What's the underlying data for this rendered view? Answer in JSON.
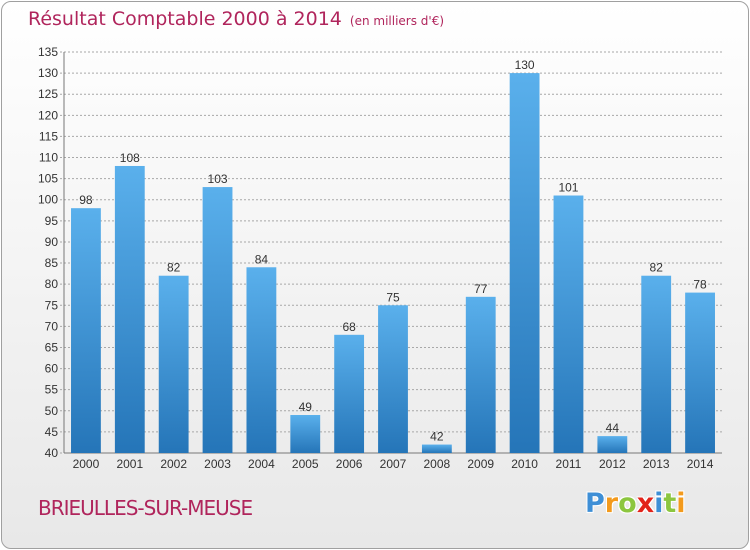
{
  "title": {
    "main": "Résultat Comptable 2000 à 2014",
    "unit": "(en milliers d'€)"
  },
  "town": "BRIEULLES-SUR-MEUSE",
  "logo": {
    "letters": [
      "P",
      "r",
      "o",
      "x",
      "i",
      "t",
      "i"
    ],
    "colors": [
      "#3e8fd6",
      "#f39a1c",
      "#8cc63f",
      "#e2231a",
      "#3e8fd6",
      "#8cc63f",
      "#f39a1c"
    ]
  },
  "colors": {
    "accent": "#b0255c",
    "bar_light": "#5ab0ec",
    "bar_dark": "#2575b8",
    "grid": "#a8a8a8"
  },
  "chart_data": {
    "type": "bar",
    "title": "Résultat Comptable 2000 à 2014",
    "subtitle": "(en milliers d'€)",
    "categories": [
      "2000",
      "2001",
      "2002",
      "2003",
      "2004",
      "2005",
      "2006",
      "2007",
      "2008",
      "2009",
      "2010",
      "2011",
      "2012",
      "2013",
      "2014"
    ],
    "values": [
      98,
      108,
      82,
      103,
      84,
      49,
      68,
      75,
      42,
      77,
      130,
      101,
      44,
      82,
      78
    ],
    "ylim": [
      40,
      135
    ],
    "yticks": [
      40,
      45,
      50,
      55,
      60,
      65,
      70,
      75,
      80,
      85,
      90,
      95,
      100,
      105,
      110,
      115,
      120,
      125,
      130,
      135
    ],
    "grid": true,
    "legend": "none"
  }
}
